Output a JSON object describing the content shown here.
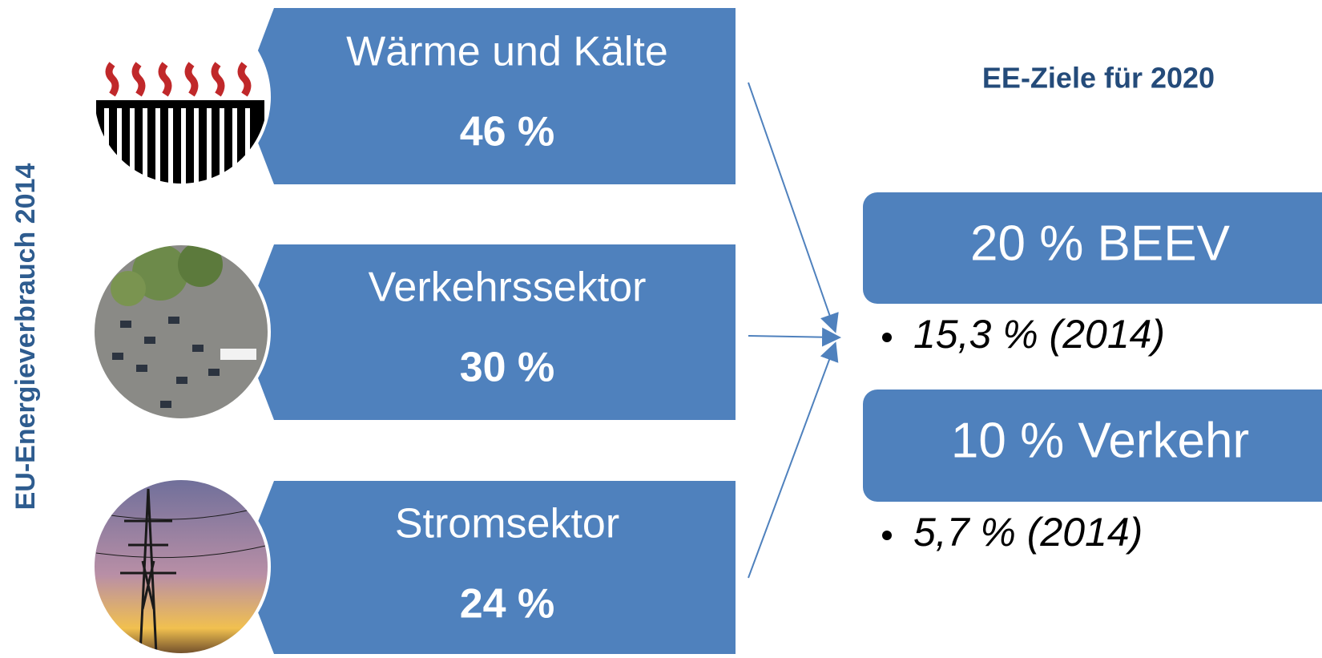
{
  "side_label": "EU-Energieverbrauch 2014",
  "sectors": [
    {
      "label": "Wärme und Kälte",
      "share": "46 %"
    },
    {
      "label": "Verkehrssektor",
      "share": "30 %"
    },
    {
      "label": "Stromsektor",
      "share": "24 %"
    }
  ],
  "targets": {
    "title": "EE-Ziele für 2020",
    "items": [
      {
        "label": "20 % BEEV",
        "status": "15,3 % (2014)"
      },
      {
        "label": "10 % Verkehr",
        "status": "5,7 % (2014)"
      }
    ]
  }
}
